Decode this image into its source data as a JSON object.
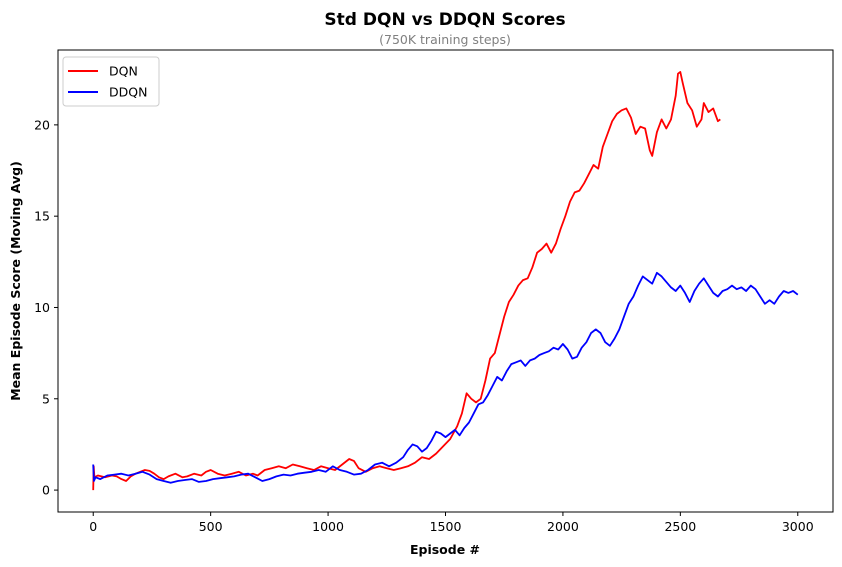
{
  "chart_data": {
    "type": "line",
    "title": "Std DQN vs DDQN Scores",
    "subtitle": "(750K training steps)",
    "xlabel": "Episode #",
    "ylabel": "Mean Episode Score (Moving Avg)",
    "xlim": [
      -150,
      3150
    ],
    "ylim": [
      -1.2,
      24.1
    ],
    "x_ticks": [
      0,
      500,
      1000,
      1500,
      2000,
      2500,
      3000
    ],
    "y_ticks": [
      0,
      5,
      10,
      15,
      20
    ],
    "grid": false,
    "legend_position": "top-left",
    "series": [
      {
        "name": "DQN",
        "color": "#ff0000",
        "points": [
          [
            0,
            0.0
          ],
          [
            2,
            1.3
          ],
          [
            5,
            0.7
          ],
          [
            20,
            0.8
          ],
          [
            50,
            0.7
          ],
          [
            80,
            0.8
          ],
          [
            100,
            0.75
          ],
          [
            120,
            0.6
          ],
          [
            140,
            0.5
          ],
          [
            160,
            0.75
          ],
          [
            180,
            0.9
          ],
          [
            200,
            1.0
          ],
          [
            220,
            1.1
          ],
          [
            240,
            1.05
          ],
          [
            260,
            0.9
          ],
          [
            280,
            0.7
          ],
          [
            300,
            0.6
          ],
          [
            320,
            0.75
          ],
          [
            350,
            0.9
          ],
          [
            380,
            0.7
          ],
          [
            400,
            0.75
          ],
          [
            430,
            0.9
          ],
          [
            460,
            0.8
          ],
          [
            480,
            1.0
          ],
          [
            500,
            1.1
          ],
          [
            530,
            0.9
          ],
          [
            560,
            0.8
          ],
          [
            590,
            0.9
          ],
          [
            620,
            1.0
          ],
          [
            650,
            0.8
          ],
          [
            680,
            0.9
          ],
          [
            700,
            0.8
          ],
          [
            730,
            1.1
          ],
          [
            760,
            1.2
          ],
          [
            790,
            1.3
          ],
          [
            820,
            1.2
          ],
          [
            850,
            1.4
          ],
          [
            880,
            1.3
          ],
          [
            910,
            1.2
          ],
          [
            940,
            1.1
          ],
          [
            970,
            1.3
          ],
          [
            1000,
            1.2
          ],
          [
            1030,
            1.1
          ],
          [
            1060,
            1.4
          ],
          [
            1090,
            1.7
          ],
          [
            1110,
            1.6
          ],
          [
            1130,
            1.2
          ],
          [
            1160,
            1.0
          ],
          [
            1190,
            1.2
          ],
          [
            1220,
            1.3
          ],
          [
            1250,
            1.2
          ],
          [
            1280,
            1.1
          ],
          [
            1310,
            1.2
          ],
          [
            1340,
            1.3
          ],
          [
            1370,
            1.5
          ],
          [
            1400,
            1.8
          ],
          [
            1430,
            1.7
          ],
          [
            1460,
            2.0
          ],
          [
            1490,
            2.4
          ],
          [
            1520,
            2.8
          ],
          [
            1550,
            3.5
          ],
          [
            1570,
            4.2
          ],
          [
            1590,
            5.3
          ],
          [
            1610,
            5.0
          ],
          [
            1630,
            4.8
          ],
          [
            1650,
            5.0
          ],
          [
            1670,
            6.0
          ],
          [
            1690,
            7.2
          ],
          [
            1710,
            7.5
          ],
          [
            1730,
            8.5
          ],
          [
            1750,
            9.5
          ],
          [
            1770,
            10.3
          ],
          [
            1790,
            10.7
          ],
          [
            1810,
            11.2
          ],
          [
            1830,
            11.5
          ],
          [
            1850,
            11.6
          ],
          [
            1870,
            12.2
          ],
          [
            1890,
            13.0
          ],
          [
            1910,
            13.2
          ],
          [
            1930,
            13.5
          ],
          [
            1950,
            13.0
          ],
          [
            1970,
            13.5
          ],
          [
            1990,
            14.3
          ],
          [
            2010,
            15.0
          ],
          [
            2030,
            15.8
          ],
          [
            2050,
            16.3
          ],
          [
            2070,
            16.4
          ],
          [
            2090,
            16.8
          ],
          [
            2110,
            17.3
          ],
          [
            2130,
            17.8
          ],
          [
            2150,
            17.6
          ],
          [
            2170,
            18.8
          ],
          [
            2190,
            19.5
          ],
          [
            2210,
            20.2
          ],
          [
            2230,
            20.6
          ],
          [
            2250,
            20.8
          ],
          [
            2270,
            20.9
          ],
          [
            2290,
            20.4
          ],
          [
            2310,
            19.5
          ],
          [
            2330,
            19.9
          ],
          [
            2350,
            19.8
          ],
          [
            2370,
            18.6
          ],
          [
            2380,
            18.3
          ],
          [
            2400,
            19.6
          ],
          [
            2420,
            20.3
          ],
          [
            2440,
            19.8
          ],
          [
            2460,
            20.3
          ],
          [
            2480,
            21.6
          ],
          [
            2490,
            22.8
          ],
          [
            2500,
            22.9
          ],
          [
            2510,
            22.3
          ],
          [
            2530,
            21.2
          ],
          [
            2550,
            20.8
          ],
          [
            2570,
            19.9
          ],
          [
            2590,
            20.3
          ],
          [
            2600,
            21.2
          ],
          [
            2620,
            20.7
          ],
          [
            2640,
            20.9
          ],
          [
            2660,
            20.2
          ],
          [
            2670,
            20.3
          ]
        ]
      },
      {
        "name": "DDQN",
        "color": "#0000ff",
        "points": [
          [
            0,
            1.4
          ],
          [
            3,
            0.5
          ],
          [
            10,
            0.7
          ],
          [
            30,
            0.6
          ],
          [
            60,
            0.8
          ],
          [
            90,
            0.85
          ],
          [
            120,
            0.9
          ],
          [
            150,
            0.8
          ],
          [
            180,
            0.9
          ],
          [
            210,
            1.0
          ],
          [
            240,
            0.85
          ],
          [
            270,
            0.6
          ],
          [
            300,
            0.5
          ],
          [
            330,
            0.4
          ],
          [
            360,
            0.5
          ],
          [
            390,
            0.55
          ],
          [
            420,
            0.6
          ],
          [
            450,
            0.45
          ],
          [
            480,
            0.5
          ],
          [
            510,
            0.6
          ],
          [
            540,
            0.65
          ],
          [
            570,
            0.7
          ],
          [
            600,
            0.75
          ],
          [
            630,
            0.85
          ],
          [
            660,
            0.9
          ],
          [
            690,
            0.7
          ],
          [
            720,
            0.5
          ],
          [
            750,
            0.6
          ],
          [
            780,
            0.75
          ],
          [
            810,
            0.85
          ],
          [
            840,
            0.8
          ],
          [
            870,
            0.9
          ],
          [
            900,
            0.95
          ],
          [
            930,
            1.0
          ],
          [
            960,
            1.1
          ],
          [
            990,
            1.0
          ],
          [
            1020,
            1.3
          ],
          [
            1050,
            1.1
          ],
          [
            1080,
            1.0
          ],
          [
            1110,
            0.85
          ],
          [
            1140,
            0.9
          ],
          [
            1170,
            1.1
          ],
          [
            1200,
            1.4
          ],
          [
            1230,
            1.5
          ],
          [
            1260,
            1.3
          ],
          [
            1290,
            1.5
          ],
          [
            1320,
            1.8
          ],
          [
            1340,
            2.2
          ],
          [
            1360,
            2.5
          ],
          [
            1380,
            2.4
          ],
          [
            1400,
            2.1
          ],
          [
            1420,
            2.3
          ],
          [
            1440,
            2.7
          ],
          [
            1460,
            3.2
          ],
          [
            1480,
            3.1
          ],
          [
            1500,
            2.9
          ],
          [
            1520,
            3.1
          ],
          [
            1540,
            3.3
          ],
          [
            1560,
            3.0
          ],
          [
            1580,
            3.4
          ],
          [
            1600,
            3.7
          ],
          [
            1620,
            4.2
          ],
          [
            1640,
            4.7
          ],
          [
            1660,
            4.8
          ],
          [
            1680,
            5.2
          ],
          [
            1700,
            5.7
          ],
          [
            1720,
            6.2
          ],
          [
            1740,
            6.0
          ],
          [
            1760,
            6.5
          ],
          [
            1780,
            6.9
          ],
          [
            1800,
            7.0
          ],
          [
            1820,
            7.1
          ],
          [
            1840,
            6.8
          ],
          [
            1860,
            7.1
          ],
          [
            1880,
            7.2
          ],
          [
            1900,
            7.4
          ],
          [
            1920,
            7.5
          ],
          [
            1940,
            7.6
          ],
          [
            1960,
            7.8
          ],
          [
            1980,
            7.7
          ],
          [
            2000,
            8.0
          ],
          [
            2020,
            7.7
          ],
          [
            2040,
            7.2
          ],
          [
            2060,
            7.3
          ],
          [
            2080,
            7.8
          ],
          [
            2100,
            8.1
          ],
          [
            2120,
            8.6
          ],
          [
            2140,
            8.8
          ],
          [
            2160,
            8.6
          ],
          [
            2180,
            8.1
          ],
          [
            2200,
            7.9
          ],
          [
            2220,
            8.3
          ],
          [
            2240,
            8.8
          ],
          [
            2260,
            9.5
          ],
          [
            2280,
            10.2
          ],
          [
            2300,
            10.6
          ],
          [
            2320,
            11.2
          ],
          [
            2340,
            11.7
          ],
          [
            2360,
            11.5
          ],
          [
            2380,
            11.3
          ],
          [
            2400,
            11.9
          ],
          [
            2420,
            11.7
          ],
          [
            2440,
            11.4
          ],
          [
            2460,
            11.1
          ],
          [
            2480,
            10.9
          ],
          [
            2500,
            11.2
          ],
          [
            2520,
            10.8
          ],
          [
            2540,
            10.3
          ],
          [
            2560,
            10.9
          ],
          [
            2580,
            11.3
          ],
          [
            2600,
            11.6
          ],
          [
            2620,
            11.2
          ],
          [
            2640,
            10.8
          ],
          [
            2660,
            10.6
          ],
          [
            2680,
            10.9
          ],
          [
            2700,
            11.0
          ],
          [
            2720,
            11.2
          ],
          [
            2740,
            11.0
          ],
          [
            2760,
            11.1
          ],
          [
            2780,
            10.9
          ],
          [
            2800,
            11.2
          ],
          [
            2820,
            11.0
          ],
          [
            2840,
            10.6
          ],
          [
            2860,
            10.2
          ],
          [
            2880,
            10.4
          ],
          [
            2900,
            10.2
          ],
          [
            2920,
            10.6
          ],
          [
            2940,
            10.9
          ],
          [
            2960,
            10.8
          ],
          [
            2980,
            10.9
          ],
          [
            3000,
            10.7
          ]
        ]
      }
    ]
  }
}
